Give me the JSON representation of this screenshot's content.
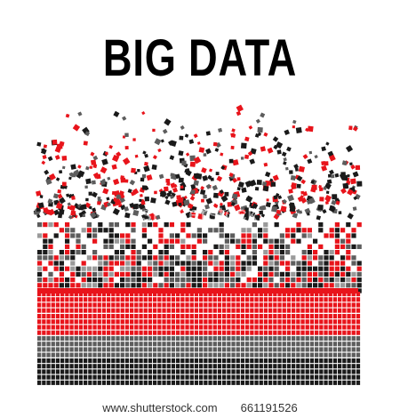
{
  "title": "BIG DATA",
  "watermark": "shutterstock",
  "footer": {
    "site": "www.shutterstock.com",
    "image_number": "661191526"
  },
  "colors": {
    "red": "#e8141b",
    "black": "#1a1a1a",
    "gray": "#5d5d5d",
    "light_gray": "#9a9a9a",
    "background": "#ffffff"
  }
}
